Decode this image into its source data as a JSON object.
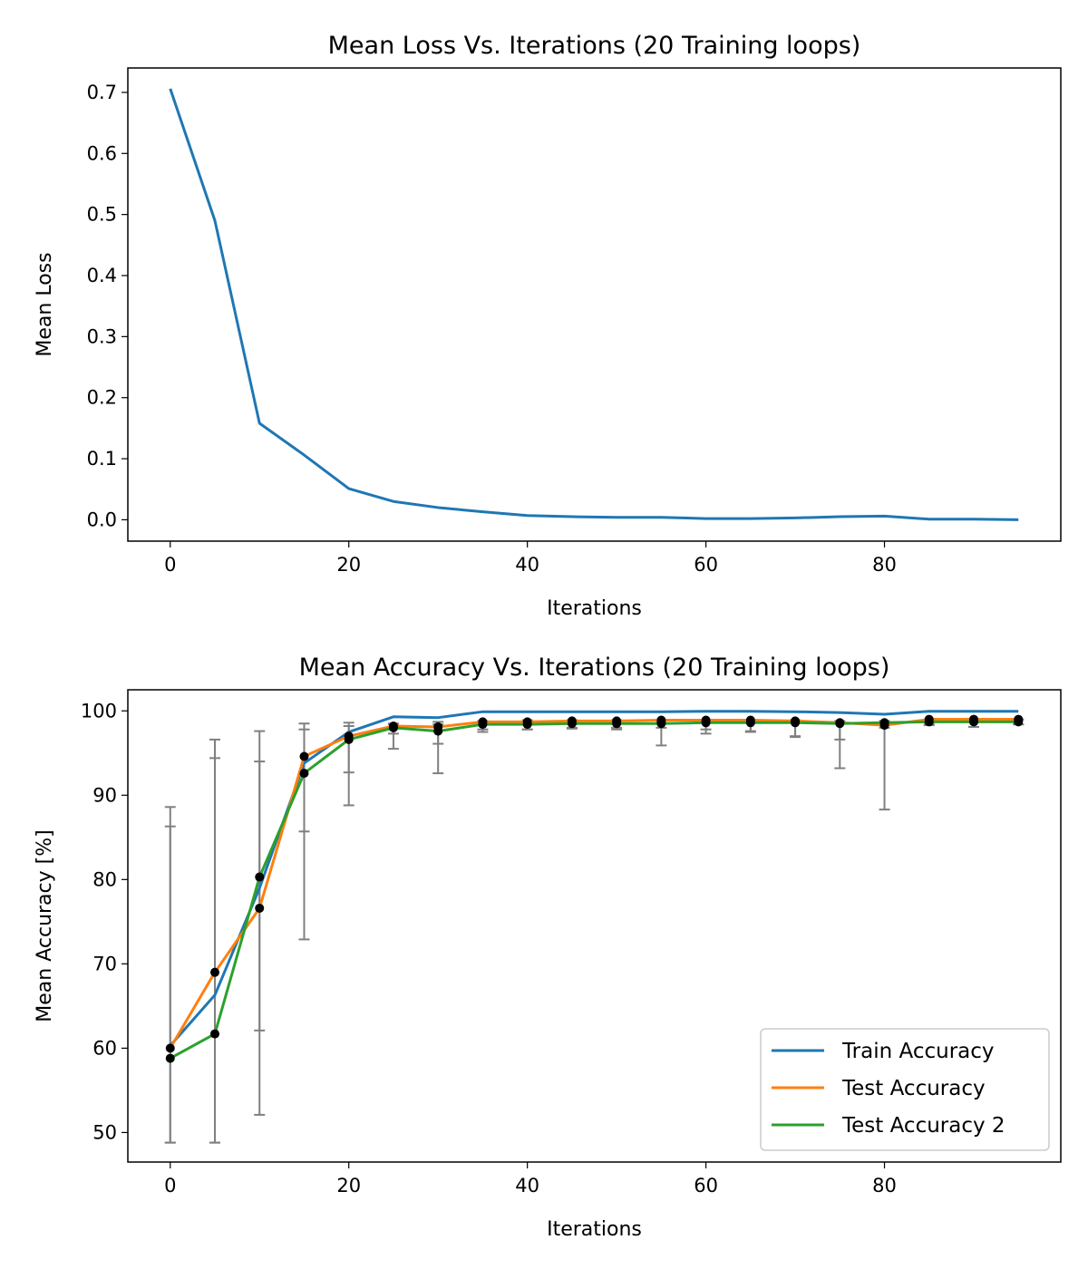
{
  "chart_data": [
    {
      "type": "line",
      "title": "Mean Loss Vs. Iterations (20 Training loops)",
      "xlabel": "Iterations",
      "ylabel": "Mean Loss",
      "xlim": [
        -4.75,
        99.75
      ],
      "ylim": [
        -0.035,
        0.74
      ],
      "xticks": [
        0,
        20,
        40,
        60,
        80
      ],
      "yticks": [
        0.0,
        0.1,
        0.2,
        0.3,
        0.4,
        0.5,
        0.6,
        0.7
      ],
      "ytick_labels": [
        "0.0",
        "0.1",
        "0.2",
        "0.3",
        "0.4",
        "0.5",
        "0.6",
        "0.7"
      ],
      "grid": false,
      "x": [
        0,
        5,
        10,
        15,
        20,
        25,
        30,
        35,
        40,
        45,
        50,
        55,
        60,
        65,
        70,
        75,
        80,
        85,
        90,
        95
      ],
      "series": [
        {
          "name": "",
          "color": "#1f77b4",
          "values": [
            0.706,
            0.49,
            0.158,
            0.106,
            0.051,
            0.03,
            0.02,
            0.013,
            0.007,
            0.005,
            0.004,
            0.004,
            0.002,
            0.002,
            0.003,
            0.005,
            0.006,
            0.001,
            0.001,
            0.0
          ]
        }
      ]
    },
    {
      "type": "line",
      "title": "Mean Accuracy Vs. Iterations (20 Training loops)",
      "xlabel": "Iterations",
      "ylabel": "Mean Accuracy [%]",
      "xlim": [
        -4.75,
        99.75
      ],
      "ylim": [
        46.5,
        102.5
      ],
      "xticks": [
        0,
        20,
        40,
        60,
        80
      ],
      "yticks": [
        50,
        60,
        70,
        80,
        90,
        100
      ],
      "ytick_labels": [
        "50",
        "60",
        "70",
        "80",
        "90",
        "100"
      ],
      "grid": false,
      "legend": "lower-right",
      "x": [
        0,
        5,
        10,
        15,
        20,
        25,
        30,
        35,
        40,
        45,
        50,
        55,
        60,
        65,
        70,
        75,
        80,
        85,
        90,
        95
      ],
      "errorbar_color": "#808080",
      "marker_color": "#000000",
      "series": [
        {
          "name": "Train Accuracy",
          "color": "#1f77b4",
          "values": [
            60.3,
            66.3,
            79.0,
            93.8,
            97.5,
            99.3,
            99.2,
            99.9,
            99.9,
            99.9,
            99.9,
            99.9,
            99.95,
            99.95,
            99.9,
            99.8,
            99.6,
            99.95,
            99.95,
            99.95
          ]
        },
        {
          "name": "Test Accuracy",
          "color": "#ff7f0e",
          "values": [
            60.0,
            69.0,
            76.6,
            94.6,
            97.0,
            98.2,
            98.1,
            98.7,
            98.7,
            98.8,
            98.8,
            98.9,
            98.9,
            98.9,
            98.8,
            98.6,
            98.3,
            99.0,
            99.0,
            99.0
          ],
          "error_low": [
            48.8,
            48.8,
            52.1,
            72.9,
            88.8,
            97.3,
            96.1,
            97.8,
            97.8,
            98.0,
            98.0,
            98.0,
            97.8,
            97.6,
            96.9,
            93.2,
            88.3,
            98.4,
            98.1,
            98.4
          ],
          "error_high": [
            88.6,
            96.6,
            97.6,
            98.5,
            98.6,
            98.5,
            98.7,
            98.8,
            98.9,
            98.9,
            98.9,
            98.9,
            98.9,
            98.9,
            98.9,
            98.8,
            98.8,
            99.0,
            99.0,
            99.0
          ]
        },
        {
          "name": "Test Accuracy 2",
          "color": "#2ca02c",
          "values": [
            58.8,
            61.7,
            80.3,
            92.6,
            96.6,
            98.0,
            97.6,
            98.4,
            98.4,
            98.5,
            98.5,
            98.5,
            98.6,
            98.6,
            98.6,
            98.5,
            98.6,
            98.7,
            98.7,
            98.7
          ],
          "error_low": [
            48.8,
            48.8,
            62.1,
            85.7,
            92.7,
            95.5,
            92.6,
            97.5,
            97.8,
            97.9,
            97.8,
            95.9,
            97.3,
            97.5,
            97.0,
            96.6,
            98.0,
            98.3,
            98.1,
            98.4
          ],
          "error_high": [
            86.3,
            94.4,
            94.0,
            97.8,
            98.2,
            98.4,
            98.4,
            98.6,
            98.7,
            98.7,
            98.7,
            98.7,
            98.7,
            98.8,
            98.8,
            98.7,
            98.8,
            98.9,
            98.9,
            98.9
          ]
        }
      ]
    }
  ]
}
